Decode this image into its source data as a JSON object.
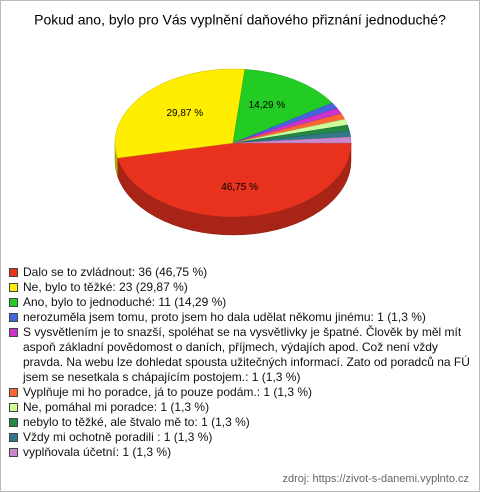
{
  "chart_data": {
    "type": "pie",
    "title": "Pokud ano, bylo pro Vás vyplnění daňového přiznání jednoduché?",
    "categories": [
      "Dalo se to zvládnout: 36 (46,75 %)",
      "Ne, bylo to těžké: 23 (29,87 %)",
      "Ano, bylo to jednoduché: 11 (14,29 %)",
      "nerozuměla jsem tomu, proto jsem ho dala udělat někomu jinému: 1 (1,3 %)",
      "S vysvětlením je to snazší, spoléhat se na vysvětlivky je špatné. Člověk by měl mít aspoň základní povědomost o daních, příjmech, výdajích apod. Což není vždy pravda. Na webu lze dohledat spousta užitečných informací. Zato od poradců na FÚ jsem se nesetkala s chápajícím postojem.: 1 (1,3 %)",
      "Vyplňuje mi ho poradce, já to pouze podám.: 1 (1,3 %)",
      "Ne, pomáhal mi poradce: 1 (1,3 %)",
      "nebylo to těžké, ale štvalo mě to: 1 (1,3 %)",
      "Vždy mi ochotně  poradili : 1 (1,3 %)",
      "vyplňovala účetní: 1 (1,3 %)"
    ],
    "values": [
      46.75,
      29.87,
      14.29,
      1.3,
      1.3,
      1.3,
      1.3,
      1.3,
      1.3,
      1.3
    ],
    "value_labels": [
      "46,75 %",
      "29,87 %",
      "14,29 %",
      null,
      null,
      null,
      null,
      null,
      null,
      null
    ],
    "colors": [
      "#e8321e",
      "#ffee00",
      "#22cc22",
      "#4466dd",
      "#cc33cc",
      "#ff6633",
      "#ccff99",
      "#228844",
      "#337788",
      "#cc88cc"
    ],
    "source": "zdroj: https://zivot-s-danemi.vyplnto.cz"
  }
}
